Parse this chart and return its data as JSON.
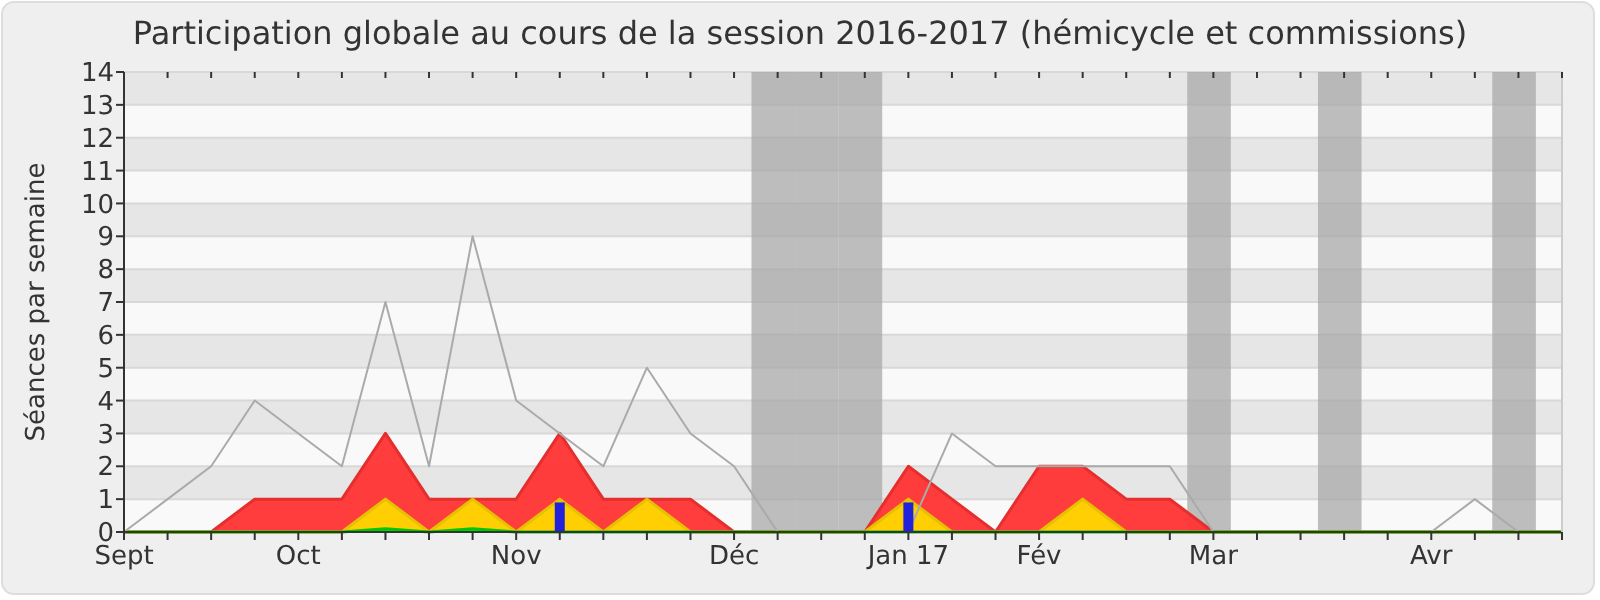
{
  "chart_data": {
    "type": "area",
    "title": "Participation globale au cours de la session 2016-2017 (hémicycle et commissions)",
    "ylabel": "Séances par semaine",
    "categories": [
      "Sept",
      null,
      null,
      null,
      "Oct",
      null,
      null,
      null,
      null,
      "Nov",
      null,
      null,
      null,
      null,
      "Déc",
      null,
      null,
      null,
      "Jan 17",
      null,
      null,
      "Fév",
      null,
      null,
      null,
      "Mar",
      null,
      null,
      null,
      null,
      "Avr",
      null,
      null,
      null
    ],
    "ylim": [
      0,
      14
    ],
    "yticks": [
      0,
      1,
      2,
      3,
      4,
      5,
      6,
      7,
      8,
      9,
      10,
      11,
      12,
      13,
      14
    ],
    "grid": "y",
    "series": [
      {
        "type": "bar",
        "color": "#a8a8a8",
        "values": [
          null,
          null,
          null,
          null,
          null,
          null,
          null,
          null,
          null,
          null,
          null,
          null,
          null,
          null,
          null,
          14,
          14,
          14,
          null,
          null,
          null,
          null,
          null,
          null,
          null,
          14,
          null,
          null,
          14,
          null,
          null,
          null,
          14,
          null
        ]
      },
      {
        "color": "#ff3333",
        "values": [
          0,
          0,
          0,
          1,
          1,
          1,
          3,
          1,
          1,
          1,
          3,
          1,
          1,
          1,
          0,
          0,
          0,
          0,
          2,
          1,
          0,
          2,
          2,
          1,
          1,
          0,
          0,
          0,
          0,
          0,
          0,
          0,
          0,
          0
        ]
      },
      {
        "color": "#ffd700",
        "values": [
          0,
          0,
          0,
          0,
          0,
          0,
          1,
          0,
          1,
          0,
          1,
          0,
          1,
          0,
          0,
          0,
          0,
          0,
          1,
          0,
          0,
          0,
          1,
          0,
          0,
          0,
          0,
          0,
          0,
          0,
          0,
          0,
          0,
          0
        ]
      },
      {
        "color": "#00dd00",
        "values": [
          0,
          0,
          0,
          0,
          0,
          0,
          0.1,
          0,
          0.1,
          0,
          0,
          0,
          0,
          0,
          0,
          0,
          0,
          0,
          0,
          0,
          0,
          0,
          0,
          0,
          0,
          0,
          0,
          0,
          0,
          0,
          0,
          0,
          0,
          0
        ]
      },
      {
        "type": "line",
        "color": "#aaaaaa",
        "values": [
          0,
          1,
          2,
          4,
          3,
          2,
          7,
          2,
          9,
          4,
          3,
          2,
          5,
          3,
          2,
          0,
          0,
          0,
          0,
          3,
          2,
          2,
          2,
          2,
          2,
          0,
          0,
          0,
          0,
          0,
          0,
          1,
          0,
          0
        ]
      },
      {
        "type": "bar",
        "color": "#2222dd",
        "values": [
          null,
          null,
          null,
          null,
          null,
          null,
          null,
          null,
          null,
          null,
          0.9,
          null,
          null,
          null,
          null,
          null,
          null,
          null,
          0.9,
          null,
          null,
          null,
          null,
          null,
          null,
          null,
          null,
          null,
          null,
          null,
          null,
          null,
          null,
          null
        ]
      }
    ]
  }
}
